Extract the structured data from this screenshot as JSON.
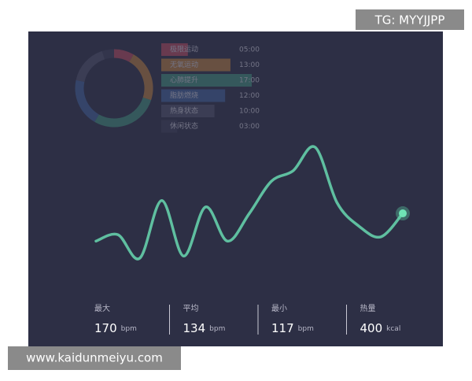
{
  "watermark": "TG: MYYJJPP",
  "site": "www.kaidunmeiyu.com",
  "zones": [
    {
      "label": "极限运动",
      "duration": "05:00",
      "color": "#b0485c"
    },
    {
      "label": "无氧运动",
      "duration": "13:00",
      "color": "#b07a3e"
    },
    {
      "label": "心肺提升",
      "duration": "17:00",
      "color": "#3f8b78"
    },
    {
      "label": "脂肪燃烧",
      "duration": "12:00",
      "color": "#3f5f96"
    },
    {
      "label": "热身状态",
      "duration": "10:00",
      "color": "#4d5068"
    },
    {
      "label": "休闲状态",
      "duration": "03:00",
      "color": "#3b3d55"
    }
  ],
  "heart_rate": [
    126,
    129,
    118,
    145,
    119,
    142,
    126,
    139,
    154,
    159,
    170,
    144,
    133,
    128,
    139
  ],
  "stats": [
    {
      "label": "最大",
      "value": 170,
      "unit": "bpm"
    },
    {
      "label": "平均",
      "value": 134,
      "unit": "bpm"
    },
    {
      "label": "最小",
      "value": 117,
      "unit": "bpm"
    },
    {
      "label": "热量",
      "value": 400,
      "unit": "kcal"
    }
  ]
}
